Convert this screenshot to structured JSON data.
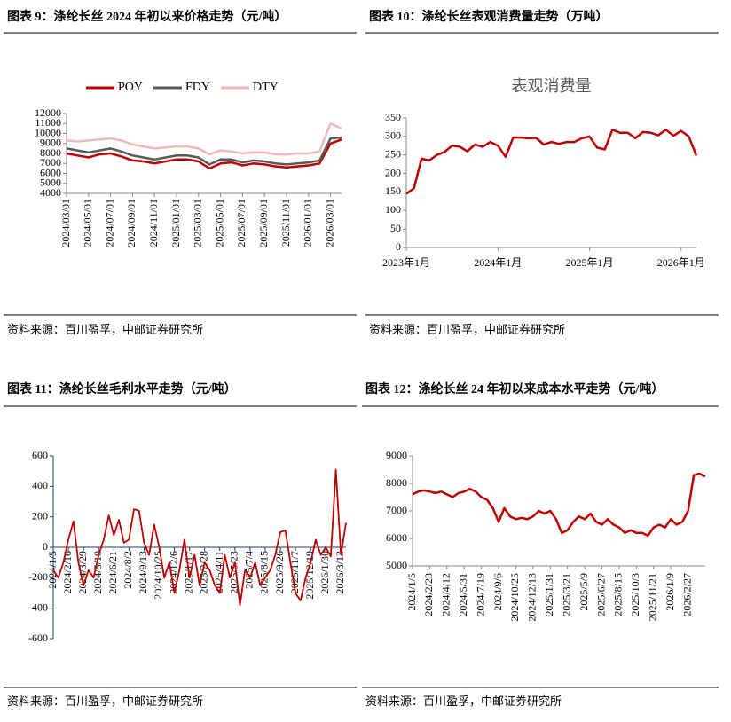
{
  "panels": [
    {
      "caption": "图表 9：涤纶长丝 2024 年初以来价格走势（元/吨）",
      "source": "资料来源：百川盈孚，中邮证券研究所"
    },
    {
      "caption": "图表 10：涤纶长丝表观消费量走势（万吨）",
      "source": "资料来源：百川盈孚，中邮证券研究所"
    },
    {
      "caption": "图表 11：涤纶长丝毛利水平走势（元/吨）",
      "source": "资料来源：百川盈孚，中邮证券研究所"
    },
    {
      "caption": "图表 12：涤纶长丝 24 年初以来成本水平走势（元/吨）",
      "source": "资料来源：百川盈孚，中邮证券研究所"
    }
  ],
  "chart_data": [
    {
      "type": "line",
      "legend": "top",
      "categories": [
        "2024/03/01",
        null,
        "2024/05/01",
        null,
        "2024/07/01",
        null,
        "2024/09/01",
        null,
        "2024/11/01",
        null,
        "2025/01/01",
        null,
        "2025/03/01",
        null,
        "2025/05/01",
        null,
        "2025/07/01",
        null,
        "2025/09/01",
        null,
        "2025/11/01",
        null,
        "2026/01/01",
        null,
        "2026/03/01",
        null
      ],
      "series": [
        {
          "name": "POY",
          "color": "#c00000",
          "values": [
            8000,
            7800,
            7600,
            7900,
            8000,
            7700,
            7300,
            7200,
            7000,
            7200,
            7400,
            7400,
            7200,
            6500,
            7000,
            7100,
            6800,
            7000,
            6900,
            6700,
            6600,
            6700,
            6800,
            7000,
            9000,
            9400
          ]
        },
        {
          "name": "FDY",
          "color": "#595959",
          "values": [
            8500,
            8300,
            8100,
            8300,
            8500,
            8200,
            7800,
            7600,
            7400,
            7600,
            7800,
            7800,
            7600,
            6900,
            7400,
            7400,
            7100,
            7300,
            7200,
            7000,
            6900,
            7000,
            7100,
            7300,
            9500,
            9600
          ]
        },
        {
          "name": "DTY",
          "color": "#f2b8b8",
          "values": [
            9300,
            9200,
            9300,
            9400,
            9500,
            9300,
            8900,
            8700,
            8500,
            8600,
            8700,
            8700,
            8500,
            7900,
            8300,
            8200,
            8000,
            8100,
            8100,
            7900,
            7900,
            8000,
            8000,
            8200,
            11000,
            10500
          ]
        }
      ],
      "ylim": [
        4000,
        12000
      ],
      "yticks": [
        4000,
        5000,
        6000,
        7000,
        8000,
        9000,
        10000,
        11000,
        12000
      ]
    },
    {
      "type": "line",
      "title": "表观消费量",
      "color": "#c00000",
      "categories": [
        "2023年1月",
        null,
        null,
        null,
        null,
        null,
        null,
        null,
        null,
        null,
        null,
        null,
        "2024年1月",
        null,
        null,
        null,
        null,
        null,
        null,
        null,
        null,
        null,
        null,
        null,
        "2025年1月",
        null,
        null,
        null,
        null,
        null,
        null,
        null,
        null,
        null,
        null,
        null,
        "2026年1月",
        null,
        null
      ],
      "values": [
        145,
        160,
        240,
        235,
        250,
        258,
        275,
        272,
        260,
        278,
        272,
        285,
        275,
        245,
        297,
        297,
        295,
        296,
        278,
        285,
        280,
        285,
        285,
        295,
        300,
        270,
        265,
        318,
        310,
        310,
        295,
        312,
        310,
        303,
        318,
        302,
        315,
        300,
        248
      ],
      "ylim": [
        0,
        350
      ],
      "yticks": [
        0,
        50,
        100,
        150,
        200,
        250,
        300,
        350
      ]
    },
    {
      "type": "line",
      "color": "#c00000",
      "categories": [
        "2024/1/5",
        null,
        null,
        "2024/2/16",
        null,
        null,
        "2024/3/29",
        null,
        null,
        "2024/5/10",
        null,
        null,
        "2024/6/21",
        null,
        null,
        "2024/8/2",
        null,
        null,
        "2024/9/13",
        null,
        null,
        "2024/10/25",
        null,
        null,
        "2024/12/6",
        null,
        null,
        "2025/1/17",
        null,
        null,
        "2025/2/28",
        null,
        null,
        "2025/4/11",
        null,
        null,
        "2025/5/23",
        null,
        null,
        "2025/7/4",
        null,
        null,
        "2025/8/15",
        null,
        null,
        "2025/9/26",
        null,
        null,
        "2025/11/7",
        null,
        null,
        "2025/12/19",
        null,
        null,
        "2026/1/30",
        null,
        null,
        "2026/3/13",
        null
      ],
      "values": [
        -150,
        -200,
        -100,
        50,
        170,
        -100,
        -250,
        -150,
        -200,
        -50,
        50,
        210,
        80,
        180,
        30,
        50,
        250,
        240,
        30,
        -50,
        150,
        0,
        -200,
        -100,
        -300,
        -150,
        50,
        -200,
        -50,
        -250,
        -100,
        -150,
        -250,
        -300,
        -50,
        -200,
        -100,
        -380,
        -150,
        -200,
        -100,
        -250,
        -200,
        -150,
        -50,
        100,
        110,
        -100,
        -300,
        -350,
        -200,
        -100,
        50,
        -50,
        0,
        -60,
        510,
        -50,
        160
      ],
      "ylim": [
        -600,
        600
      ],
      "yticks": [
        -600,
        -400,
        -200,
        0,
        200,
        400,
        600
      ]
    },
    {
      "type": "line",
      "color": "#c00000",
      "categories": [
        "2024/1/5",
        null,
        null,
        "2024/2/23",
        null,
        null,
        "2024/4/12",
        null,
        null,
        "2024/5/31",
        null,
        null,
        "2024/7/19",
        null,
        null,
        "2024/9/6",
        null,
        null,
        "2024/10/25",
        null,
        null,
        "2024/12/13",
        null,
        null,
        "2025/1/31",
        null,
        null,
        "2025/3/21",
        null,
        null,
        "2025/5/9",
        null,
        null,
        "2025/6/27",
        null,
        null,
        "2025/8/15",
        null,
        null,
        "2025/10/3",
        null,
        null,
        "2025/11/21",
        null,
        null,
        "2026/1/9",
        null,
        null,
        "2026/2/27",
        null,
        null,
        null
      ],
      "values": [
        7600,
        7700,
        7750,
        7700,
        7650,
        7700,
        7600,
        7500,
        7650,
        7700,
        7800,
        7700,
        7500,
        7400,
        7100,
        6600,
        7100,
        6800,
        6700,
        6750,
        6700,
        6800,
        7000,
        6900,
        7000,
        6700,
        6200,
        6300,
        6600,
        6800,
        6700,
        6900,
        6600,
        6500,
        6700,
        6500,
        6400,
        6200,
        6300,
        6200,
        6200,
        6100,
        6400,
        6500,
        6400,
        6700,
        6500,
        6600,
        7000,
        8300,
        8350,
        8250
      ],
      "ylim": [
        5000,
        9000
      ],
      "yticks": [
        5000,
        6000,
        7000,
        8000,
        9000
      ]
    }
  ]
}
